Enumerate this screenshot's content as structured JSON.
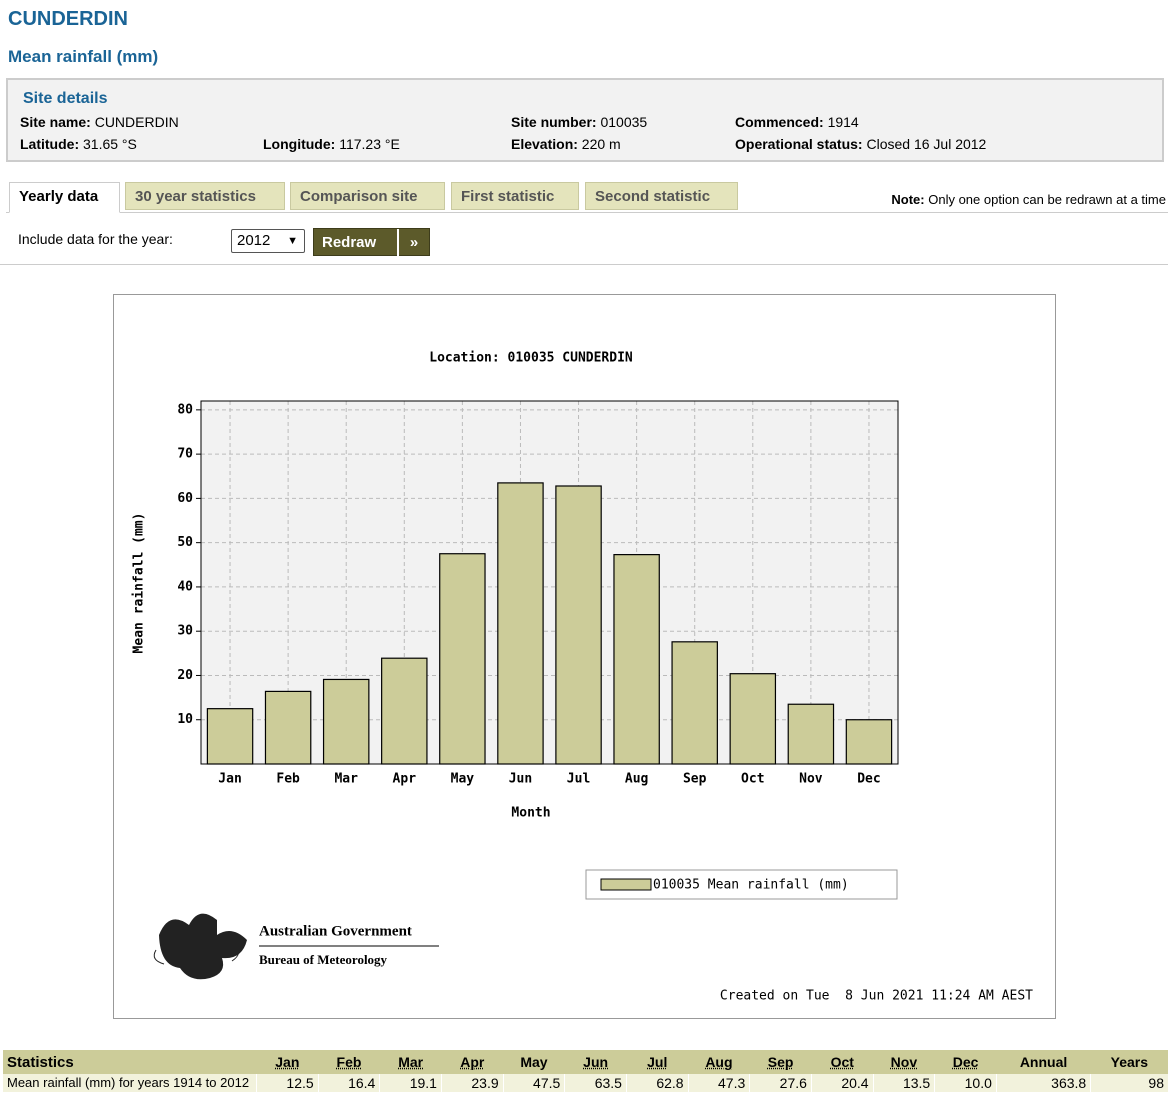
{
  "header": {
    "title": "CUNDERDIN",
    "subtitle": "Mean rainfall (mm)"
  },
  "site_details": {
    "heading": "Site details",
    "fields": [
      {
        "label": "Site name:",
        "value": "CUNDERDIN"
      },
      {
        "label": "Site number:",
        "value": "010035"
      },
      {
        "label": "Commenced:",
        "value": "1914"
      },
      {
        "label": "Latitude:",
        "value": "31.65 °S"
      },
      {
        "label": "Longitude:",
        "value": "117.23 °E"
      },
      {
        "label": "Elevation:",
        "value": "220 m"
      },
      {
        "label": "Operational status:",
        "value": "Closed 16 Jul 2012"
      }
    ]
  },
  "tabs": [
    "Yearly data",
    "30 year statistics",
    "Comparison site",
    "First statistic",
    "Second statistic"
  ],
  "note": {
    "label": "Note:",
    "text": "Only one option can be redrawn at a time"
  },
  "controls": {
    "label": "Include data for the year:",
    "year": "2012",
    "button": "Redraw"
  },
  "chart_data": {
    "type": "bar",
    "title": "Location: 010035 CUNDERDIN",
    "categories": [
      "Jan",
      "Feb",
      "Mar",
      "Apr",
      "May",
      "Jun",
      "Jul",
      "Aug",
      "Sep",
      "Oct",
      "Nov",
      "Dec"
    ],
    "values": [
      12.5,
      16.4,
      19.1,
      23.9,
      47.5,
      63.5,
      62.8,
      47.3,
      27.6,
      20.4,
      13.5,
      10.0
    ],
    "color": "#cccc99",
    "ylim": [
      0,
      82
    ],
    "yticks": [
      10,
      20,
      30,
      40,
      50,
      60,
      70,
      80
    ],
    "grid": true,
    "x_label": "Month",
    "y_label": "Mean rainfall (mm)",
    "legend": "010035 Mean rainfall (mm)",
    "logo": [
      "Australian Government",
      "Bureau of Meteorology"
    ],
    "footer": "Created on Tue  8 Jun 2021 11:24 AM AEST"
  },
  "statistics": {
    "header": [
      "Statistics",
      "Jan",
      "Feb",
      "Mar",
      "Apr",
      "May",
      "Jun",
      "Jul",
      "Aug",
      "Sep",
      "Oct",
      "Nov",
      "Dec",
      "Annual",
      "Years"
    ],
    "rows": [
      {
        "label": "Mean rainfall (mm) for years 1914 to 2012",
        "values": [
          "12.5",
          "16.4",
          "19.1",
          "23.9",
          "47.5",
          "63.5",
          "62.8",
          "47.3",
          "27.6",
          "20.4",
          "13.5",
          "10.0",
          "363.8",
          "98"
        ]
      }
    ]
  }
}
